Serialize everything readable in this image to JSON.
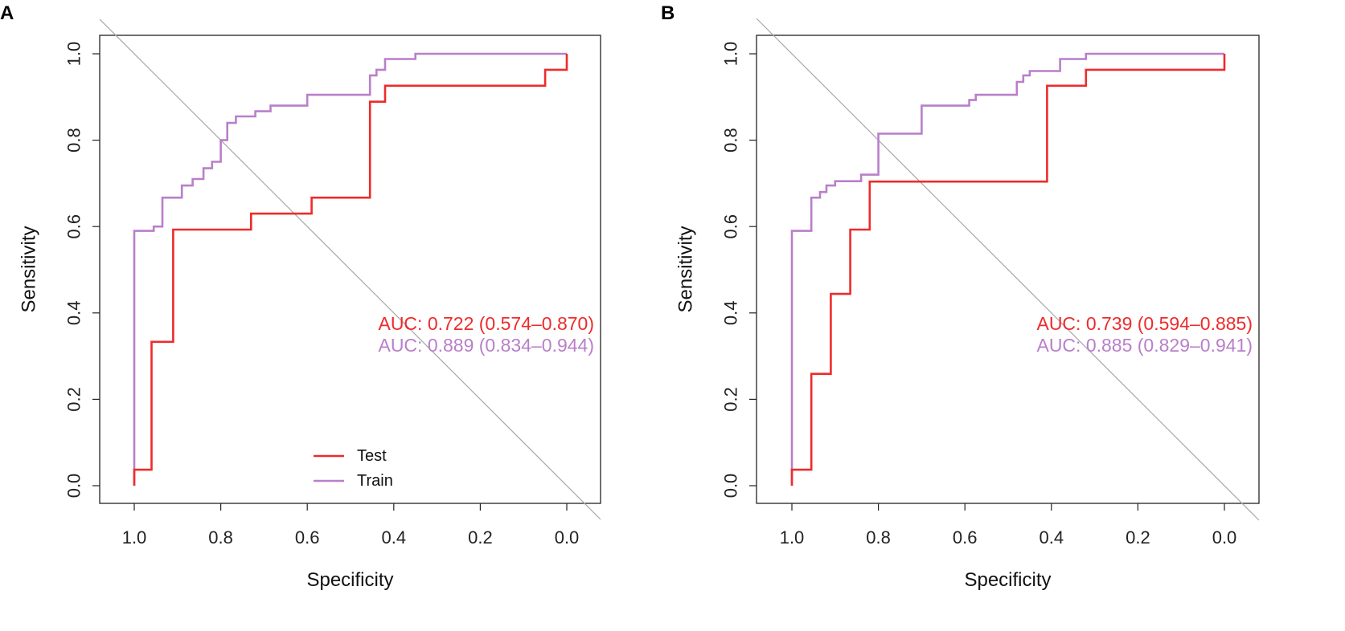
{
  "colors": {
    "test": "#ee2b2b",
    "train": "#b97fc9",
    "diagonal": "#a8a8a8",
    "axis": "#222222"
  },
  "chart_data": [
    {
      "type": "line",
      "panel": "A",
      "xlabel": "Specificity",
      "ylabel": "Sensitivity",
      "xlim": [
        1.0,
        0.0
      ],
      "ylim": [
        0.0,
        1.0
      ],
      "x_reversed": true,
      "xticks": [
        "1.0",
        "0.8",
        "0.6",
        "0.4",
        "0.2",
        "0.0"
      ],
      "yticks": [
        "0.0",
        "0.2",
        "0.4",
        "0.6",
        "0.8",
        "1.0"
      ],
      "diagonal": true,
      "legend": {
        "position": "bottom-center",
        "entries": [
          "Test",
          "Train"
        ]
      },
      "annotations": [
        "AUC: 0.722 (0.574–0.870)",
        "AUC: 0.889 (0.834–0.944)"
      ],
      "series": [
        {
          "name": "Test",
          "x_specificity": [
            1.0,
            1.0,
            0.96,
            0.96,
            0.91,
            0.91,
            0.73,
            0.73,
            0.59,
            0.59,
            0.455,
            0.455,
            0.42,
            0.42,
            0.05,
            0.05,
            0.0,
            0.0
          ],
          "y_sensitivity": [
            0.0,
            0.037,
            0.037,
            0.333,
            0.333,
            0.593,
            0.593,
            0.63,
            0.63,
            0.667,
            0.667,
            0.889,
            0.889,
            0.926,
            0.926,
            0.963,
            0.963,
            1.0
          ]
        },
        {
          "name": "Train",
          "x_specificity": [
            1.0,
            1.0,
            0.955,
            0.955,
            0.935,
            0.935,
            0.89,
            0.89,
            0.865,
            0.865,
            0.84,
            0.84,
            0.82,
            0.82,
            0.8,
            0.8,
            0.785,
            0.785,
            0.765,
            0.765,
            0.72,
            0.72,
            0.685,
            0.685,
            0.6,
            0.6,
            0.455,
            0.455,
            0.44,
            0.44,
            0.42,
            0.42,
            0.35,
            0.35,
            0.0
          ],
          "y_sensitivity": [
            0.0,
            0.59,
            0.59,
            0.6,
            0.6,
            0.667,
            0.667,
            0.695,
            0.695,
            0.71,
            0.71,
            0.735,
            0.735,
            0.75,
            0.75,
            0.8,
            0.8,
            0.84,
            0.84,
            0.855,
            0.855,
            0.867,
            0.867,
            0.88,
            0.88,
            0.905,
            0.905,
            0.95,
            0.95,
            0.963,
            0.963,
            0.988,
            0.988,
            1.0,
            1.0
          ]
        }
      ]
    },
    {
      "type": "line",
      "panel": "B",
      "xlabel": "Specificity",
      "ylabel": "Sensitivity",
      "xlim": [
        1.0,
        0.0
      ],
      "ylim": [
        0.0,
        1.0
      ],
      "x_reversed": true,
      "xticks": [
        "1.0",
        "0.8",
        "0.6",
        "0.4",
        "0.2",
        "0.0"
      ],
      "yticks": [
        "0.0",
        "0.2",
        "0.4",
        "0.6",
        "0.8",
        "1.0"
      ],
      "diagonal": true,
      "annotations": [
        "AUC: 0.739 (0.594–0.885)",
        "AUC: 0.885 (0.829–0.941)"
      ],
      "series": [
        {
          "name": "Test",
          "x_specificity": [
            1.0,
            1.0,
            0.955,
            0.955,
            0.91,
            0.91,
            0.865,
            0.865,
            0.82,
            0.82,
            0.41,
            0.41,
            0.32,
            0.32,
            0.0,
            0.0
          ],
          "y_sensitivity": [
            0.0,
            0.037,
            0.037,
            0.259,
            0.259,
            0.444,
            0.444,
            0.593,
            0.593,
            0.704,
            0.704,
            0.926,
            0.926,
            0.963,
            0.963,
            1.0
          ]
        },
        {
          "name": "Train",
          "x_specificity": [
            1.0,
            1.0,
            0.955,
            0.955,
            0.935,
            0.935,
            0.92,
            0.92,
            0.9,
            0.9,
            0.89,
            0.89,
            0.84,
            0.84,
            0.8,
            0.8,
            0.79,
            0.79,
            0.7,
            0.7,
            0.59,
            0.59,
            0.575,
            0.575,
            0.48,
            0.48,
            0.465,
            0.465,
            0.45,
            0.45,
            0.38,
            0.38,
            0.32,
            0.32,
            0.0
          ],
          "y_sensitivity": [
            0.0,
            0.59,
            0.59,
            0.667,
            0.667,
            0.68,
            0.68,
            0.695,
            0.695,
            0.705,
            0.705,
            0.705,
            0.705,
            0.72,
            0.72,
            0.815,
            0.815,
            0.815,
            0.815,
            0.88,
            0.88,
            0.893,
            0.893,
            0.905,
            0.905,
            0.935,
            0.935,
            0.95,
            0.95,
            0.96,
            0.96,
            0.988,
            0.988,
            1.0,
            1.0
          ]
        }
      ]
    }
  ]
}
